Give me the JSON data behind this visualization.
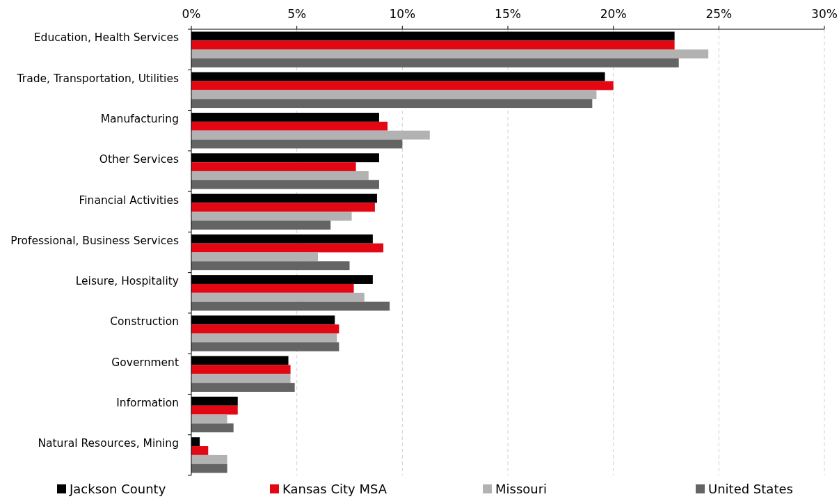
{
  "chart_data": {
    "type": "bar",
    "orientation": "horizontal",
    "categories": [
      "Education, Health Services",
      "Trade, Transportation, Utilities",
      "Manufacturing",
      "Other Services",
      "Financial Activities",
      "Professional, Business Services",
      "Leisure, Hospitality",
      "Construction",
      "Government",
      "Information",
      "Natural Resources, Mining"
    ],
    "series": [
      {
        "name": "Jackson County",
        "color": "#000000",
        "values": [
          22.9,
          19.6,
          8.9,
          8.9,
          8.8,
          8.6,
          8.6,
          6.8,
          4.6,
          2.2,
          0.4
        ]
      },
      {
        "name": "Kansas City MSA",
        "color": "#e30613",
        "values": [
          22.9,
          20.0,
          9.3,
          7.8,
          8.7,
          9.1,
          7.7,
          7.0,
          4.7,
          2.2,
          0.8
        ]
      },
      {
        "name": "Missouri",
        "color": "#b2b2b2",
        "values": [
          24.5,
          19.2,
          11.3,
          8.4,
          7.6,
          6.0,
          8.2,
          6.9,
          4.7,
          1.7,
          1.7
        ]
      },
      {
        "name": "United States",
        "color": "#646464",
        "values": [
          23.1,
          19.0,
          10.0,
          8.9,
          6.6,
          7.5,
          9.4,
          7.0,
          4.9,
          2.0,
          1.7
        ]
      }
    ],
    "xlim": [
      0,
      30
    ],
    "xticks": [
      {
        "value": 0,
        "label": "0%"
      },
      {
        "value": 5,
        "label": "5%"
      },
      {
        "value": 10,
        "label": "10%"
      },
      {
        "value": 15,
        "label": "15%"
      },
      {
        "value": 20,
        "label": "20%"
      },
      {
        "value": 25,
        "label": "25%"
      },
      {
        "value": 30,
        "label": "30%"
      }
    ],
    "grid": "x",
    "legend": "bottom"
  }
}
